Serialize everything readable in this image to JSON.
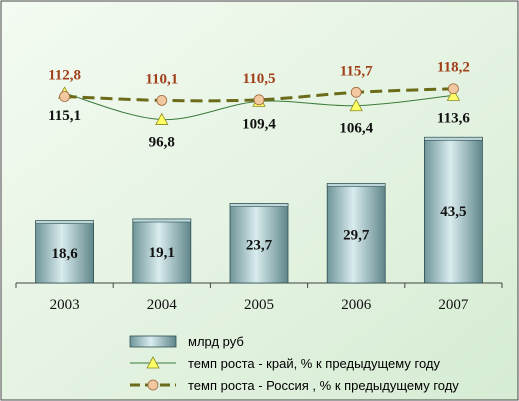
{
  "chart_data": {
    "type": "bar",
    "categories": [
      "2003",
      "2004",
      "2005",
      "2006",
      "2007"
    ],
    "series": [
      {
        "name": "млрд руб",
        "kind": "bar",
        "values": [
          18.6,
          19.1,
          23.7,
          29.7,
          43.5
        ],
        "labels": [
          "18,6",
          "19,1",
          "23,7",
          "29,7",
          "43,5"
        ],
        "color": "#8fb3b8"
      },
      {
        "name": "темп роста - край, % к предыдущему году",
        "kind": "line",
        "values": [
          115.1,
          96.8,
          109.4,
          106.4,
          113.6
        ],
        "labels": [
          "115,1",
          "96,8",
          "109,4",
          "106,4",
          "113,6"
        ],
        "color": "#3a7a3a",
        "marker": "triangle",
        "marker_color": "#ffff66"
      },
      {
        "name": "темп роста - Россия , % к предыдущему году",
        "kind": "line",
        "values": [
          112.8,
          110.1,
          110.5,
          115.7,
          118.2
        ],
        "labels": [
          "112,8",
          "110,1",
          "110,5",
          "115,7",
          "118,2"
        ],
        "color": "#6b6b1a",
        "marker": "circle",
        "marker_color": "#f2c8a0",
        "label_color": "#a0401a"
      }
    ],
    "legend_position": "bottom",
    "grid": false,
    "background": "#e6f4e4"
  }
}
